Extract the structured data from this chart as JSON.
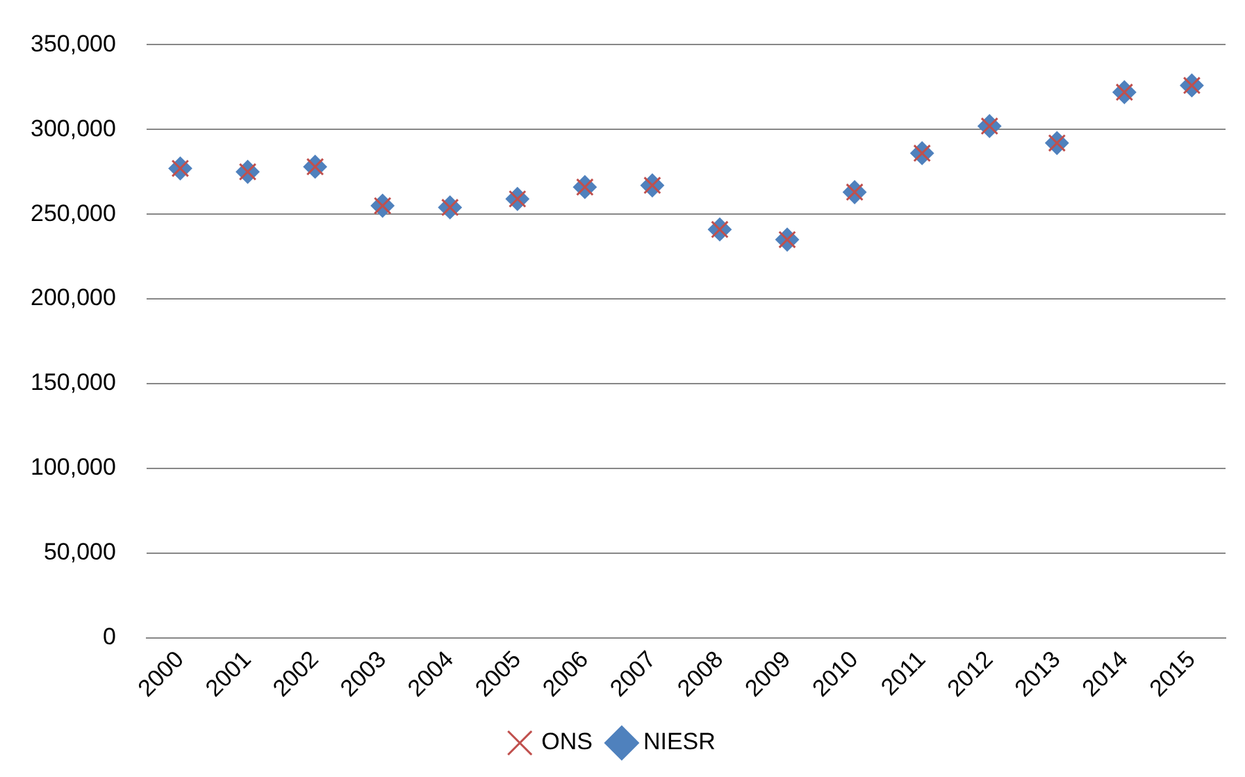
{
  "chart_data": {
    "type": "scatter",
    "categories": [
      "2000",
      "2001",
      "2002",
      "2003",
      "2004",
      "2005",
      "2006",
      "2007",
      "2008",
      "2009",
      "2010",
      "2011",
      "2012",
      "2013",
      "2014",
      "2015"
    ],
    "series": [
      {
        "name": "NIESR",
        "color": "#4f81bd",
        "marker": "diamond",
        "values": [
          277000,
          275000,
          278000,
          255000,
          254000,
          259000,
          266000,
          267000,
          241000,
          235000,
          263000,
          286000,
          302000,
          292000,
          322000,
          326000
        ]
      },
      {
        "name": "ONS",
        "color": "#c0504d",
        "marker": "cross",
        "values": [
          277000,
          275000,
          278000,
          255000,
          254000,
          259000,
          266000,
          267000,
          241000,
          235000,
          263000,
          286000,
          302000,
          292000,
          322000,
          326000
        ]
      }
    ],
    "ylim": [
      0,
      350000
    ],
    "yticks": [
      0,
      {
        "value": 50000,
        "label": "50,000"
      },
      {
        "value": 100000,
        "label": "100,000"
      },
      {
        "value": 150000,
        "label": "150,000"
      },
      {
        "value": 200000,
        "label": "200,000"
      },
      {
        "value": 250000,
        "label": "250,000"
      },
      {
        "value": 300000,
        "label": "300,000"
      },
      {
        "value": 350000,
        "label": "350,000"
      }
    ],
    "grid": "y",
    "legend": "bottom"
  }
}
